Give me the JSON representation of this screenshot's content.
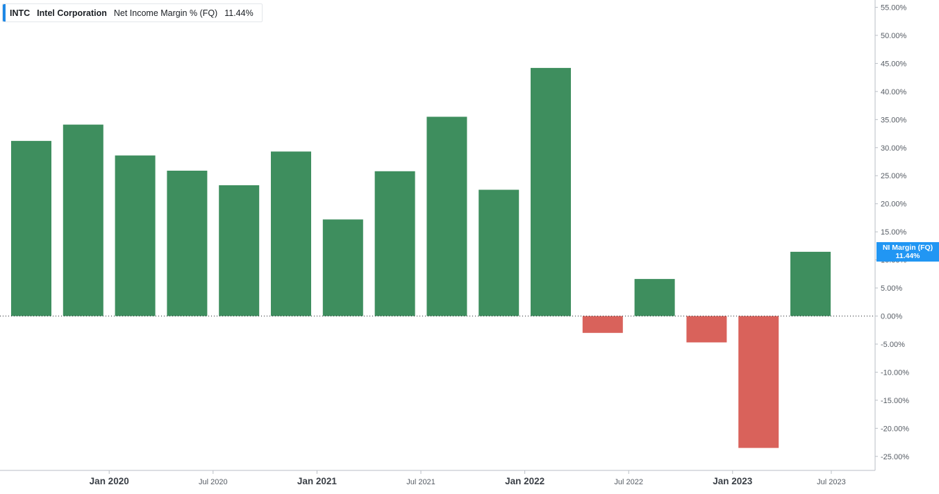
{
  "legend": {
    "ticker": "INTC",
    "company": "Intel Corporation",
    "metric": "Net Income Margin % (FQ)",
    "value": "11.44%"
  },
  "price_tag": {
    "label": "NI Margin (FQ)",
    "value": "11.44%"
  },
  "colors": {
    "positive": "#3e8e5e",
    "negative": "#d9625b",
    "accent": "#2196f3",
    "axis_text": "#555b63"
  },
  "chart_data": {
    "type": "bar",
    "categories": [
      "Q3 2019",
      "Q4 2019",
      "Q1 2020",
      "Q2 2020",
      "Q3 2020",
      "Q4 2020",
      "Q1 2021",
      "Q2 2021",
      "Q3 2021",
      "Q4 2021",
      "Q1 2022",
      "Q2 2022",
      "Q3 2022",
      "Q4 2022",
      "Q1 2023",
      "Q2 2023"
    ],
    "values": [
      31.2,
      34.1,
      28.6,
      25.9,
      23.3,
      29.3,
      17.2,
      25.8,
      35.5,
      22.5,
      44.2,
      -3.0,
      6.6,
      -4.7,
      -23.5,
      11.44
    ],
    "ylim": [
      -27.5,
      56.3
    ],
    "y_ticks": [
      55,
      50,
      45,
      40,
      35,
      30,
      25,
      20,
      15,
      10,
      5,
      0,
      -5,
      -10,
      -15,
      -20,
      -25
    ],
    "y_tick_labels": [
      "55.00%",
      "50.00%",
      "45.00%",
      "40.00%",
      "35.00%",
      "30.00%",
      "25.00%",
      "20.00%",
      "15.00%",
      "10.00%",
      "5.00%",
      "0.00%",
      "-5.00%",
      "-10.00%",
      "-15.00%",
      "-20.00%",
      "-25.00%"
    ],
    "x_ticks": [
      {
        "label": "Jan 2020",
        "position": 1.5,
        "major": true
      },
      {
        "label": "Jul 2020",
        "position": 3.5,
        "major": false
      },
      {
        "label": "Jan 2021",
        "position": 5.5,
        "major": true
      },
      {
        "label": "Jul 2021",
        "position": 7.5,
        "major": false
      },
      {
        "label": "Jan 2022",
        "position": 9.5,
        "major": true
      },
      {
        "label": "Jul 2022",
        "position": 11.5,
        "major": false
      },
      {
        "label": "Jan 2023",
        "position": 13.5,
        "major": true
      },
      {
        "label": "Jul 2023",
        "position": 15.4,
        "major": false
      }
    ],
    "zero_line": "dotted",
    "grid": false,
    "axis_position": "right"
  }
}
